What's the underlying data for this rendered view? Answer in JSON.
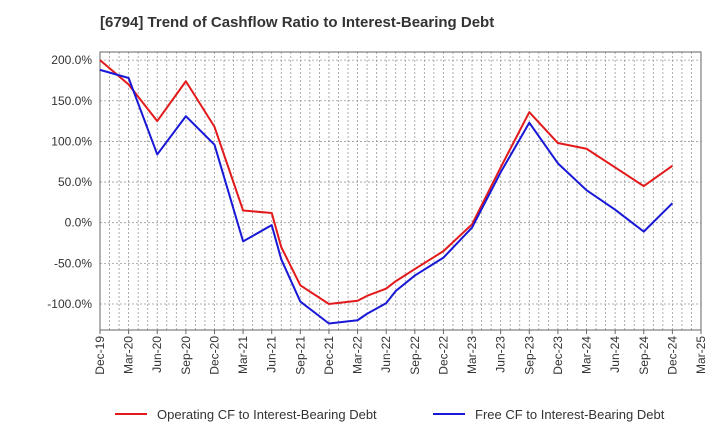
{
  "chart_data": {
    "type": "line",
    "title": "[6794]  Trend of Cashflow Ratio to Interest-Bearing Debt",
    "xlabel": "",
    "ylabel": "",
    "ylim": [
      -132,
      210
    ],
    "yticks": [
      200,
      150,
      100,
      50,
      0,
      -50,
      -100
    ],
    "ytick_labels": [
      "200.0%",
      "150.0%",
      "100.0%",
      "50.0%",
      "0.0%",
      "-50.0%",
      "-100.0%"
    ],
    "xticks": [
      "Dec-19",
      "Mar-20",
      "Jun-20",
      "Sep-20",
      "Dec-20",
      "Mar-21",
      "Jun-21",
      "Sep-21",
      "Dec-21",
      "Mar-22",
      "Jun-22",
      "Sep-22",
      "Dec-22",
      "Mar-23",
      "Jun-23",
      "Sep-23",
      "Dec-23",
      "Mar-24",
      "Jun-24",
      "Sep-24",
      "Dec-24",
      "Mar-25"
    ],
    "grid": true,
    "legend_position": "bottom",
    "series": [
      {
        "name": "Operating CF to Interest-Bearing Debt",
        "color": "#e31a1c",
        "x": [
          "Dec-19",
          "Mar-20",
          "Jun-20",
          "Sep-20",
          "Dec-20",
          "Mar-21",
          "Jun-21",
          "Jul-21",
          "Sep-21",
          "Dec-21",
          "Mar-22",
          "Apr-22",
          "Jun-22",
          "Jul-22",
          "Sep-22",
          "Dec-22",
          "Mar-23",
          "Jun-23",
          "Sep-23",
          "Dec-23",
          "Mar-24",
          "Jun-24",
          "Sep-24",
          "Dec-24"
        ],
        "values": [
          200,
          170,
          125,
          174,
          118,
          15,
          12,
          -30,
          -77,
          -100,
          -96,
          -90,
          -81,
          -72,
          -57,
          -35,
          -2,
          68,
          136,
          98,
          91,
          68,
          45,
          70
        ]
      },
      {
        "name": "Free CF to Interest-Bearing Debt",
        "color": "#1818d6",
        "x": [
          "Dec-19",
          "Mar-20",
          "Jun-20",
          "Sep-20",
          "Dec-20",
          "Mar-21",
          "Jun-21",
          "Jul-21",
          "Sep-21",
          "Dec-21",
          "Mar-22",
          "Apr-22",
          "Jun-22",
          "Jul-22",
          "Sep-22",
          "Dec-22",
          "Mar-23",
          "Jun-23",
          "Sep-23",
          "Dec-23",
          "Mar-24",
          "Jun-24",
          "Sep-24",
          "Dec-24"
        ],
        "values": [
          188,
          178,
          84,
          131,
          96,
          -23,
          -3,
          -45,
          -97,
          -124,
          -120,
          -112,
          -99,
          -84,
          -65,
          -43,
          -6,
          62,
          123,
          73,
          40,
          16,
          -11,
          24
        ]
      }
    ]
  }
}
